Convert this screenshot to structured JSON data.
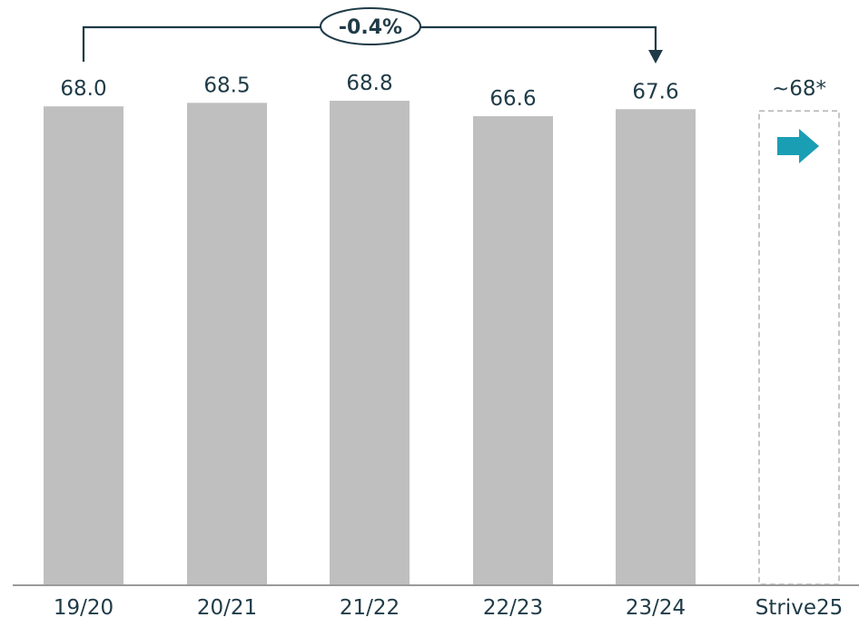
{
  "chart_data": {
    "type": "bar",
    "categories": [
      "19/20",
      "20/21",
      "21/22",
      "22/23",
      "23/24",
      "Strive25"
    ],
    "values": [
      68.0,
      68.5,
      68.8,
      66.6,
      67.6,
      68
    ],
    "value_labels": [
      "68.0",
      "68.5",
      "68.8",
      "66.6",
      "67.6",
      "~68*"
    ],
    "target_category": "Strive25",
    "ylim": [
      0,
      68.8
    ],
    "grid": false,
    "legend": "none",
    "annotation": {
      "label": "-0.4%",
      "from_category": "19/20",
      "to_category": "23/24"
    },
    "colors": {
      "bar": "#bfbfbf",
      "target_outline": "#b3b3b3",
      "arrow": "#1a9eb4",
      "connector": "#1f3b47",
      "axis": "#9a9a9a",
      "text": "#1f3b47"
    }
  }
}
